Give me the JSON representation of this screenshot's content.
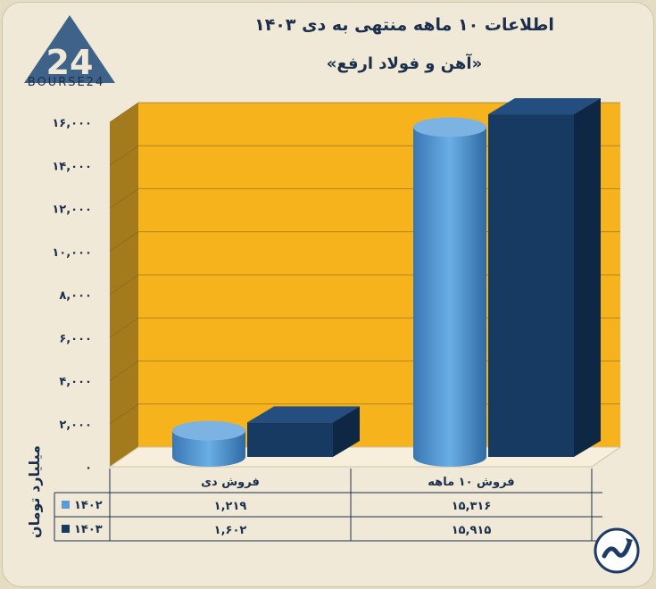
{
  "title": "اطلاعات ۱۰ ماهه منتهی به دی ۱۴۰۳",
  "subtitle": "«آهن و فولاد ارفع»",
  "logo": {
    "text": "BOURSE24",
    "mark": "24"
  },
  "colors": {
    "background": "#f0e9d8",
    "plot_back": "#f6b31c",
    "plot_side": "#a37a1c",
    "series_1402": "#5b9bd5",
    "series_1403": "#173a63",
    "text": "#1b2f4c"
  },
  "chart_data": {
    "type": "bar",
    "bar_style": "3d",
    "categories": [
      "فروش دی",
      "فروش ۱۰ ماهه"
    ],
    "series": [
      {
        "name": "۱۴۰۲",
        "values": [
          1219,
          15316
        ],
        "labels": [
          "۱,۲۱۹",
          "۱۵,۳۱۶"
        ],
        "shape": "cylinder"
      },
      {
        "name": "۱۴۰۳",
        "values": [
          1602,
          15915
        ],
        "labels": [
          "۱,۶۰۲",
          "۱۵,۹۱۵"
        ],
        "shape": "box"
      }
    ],
    "ylabel": "میلیارد تومان",
    "ylim": [
      0,
      16000
    ],
    "yticks": [
      0,
      2000,
      4000,
      6000,
      8000,
      10000,
      12000,
      14000,
      16000
    ],
    "ytick_labels": [
      "۰",
      "۲,۰۰۰",
      "۴,۰۰۰",
      "۶,۰۰۰",
      "۸,۰۰۰",
      "۱۰,۰۰۰",
      "۱۲,۰۰۰",
      "۱۴,۰۰۰",
      "۱۶,۰۰۰"
    ],
    "grid": true,
    "legend": "data-table"
  },
  "icons": {
    "corner": "chart-arrow-logo-icon"
  }
}
